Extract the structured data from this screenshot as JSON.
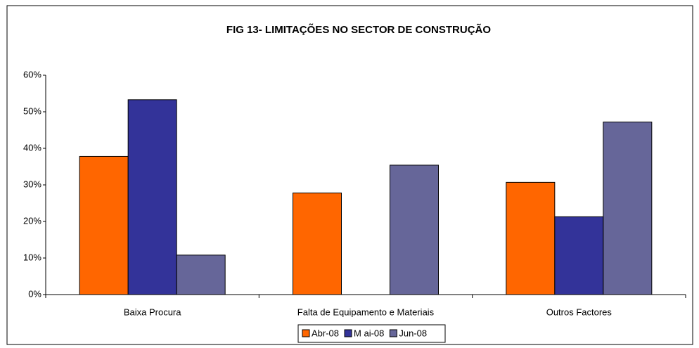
{
  "chart_data": {
    "type": "bar",
    "title": "FIG 13- LIMITAÇÕES  NO SECTOR DE CONSTRUÇÃO",
    "categories": [
      "Baixa Procura",
      "Falta de  Equipamento e Materiais",
      "Outros Factores"
    ],
    "series": [
      {
        "name": "Abr-08",
        "color": "#ff6600",
        "values": [
          37.8,
          27.8,
          30.7
        ]
      },
      {
        "name": "M ai-08",
        "color": "#333399",
        "values": [
          53.3,
          null,
          21.3
        ]
      },
      {
        "name": "Jun-08",
        "color": "#666699",
        "values": [
          10.8,
          35.4,
          47.2
        ]
      }
    ],
    "ylim": [
      0,
      60
    ],
    "yticks": [
      {
        "value": 0,
        "label": "0%"
      },
      {
        "value": 10,
        "label": "10%"
      },
      {
        "value": 20,
        "label": "20%"
      },
      {
        "value": 30,
        "label": "30%"
      },
      {
        "value": 40,
        "label": "40%"
      },
      {
        "value": 50,
        "label": "50%"
      },
      {
        "value": 60,
        "label": "60%"
      }
    ],
    "grid": false,
    "legend": "bottom"
  }
}
